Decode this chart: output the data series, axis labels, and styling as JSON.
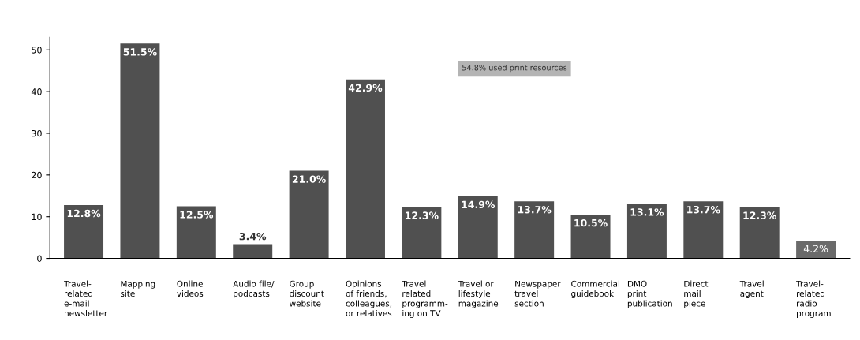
{
  "chart_data": {
    "type": "bar",
    "categories": [
      "Travel-\nrelated\ne-mail\nnewsletter",
      "Mapping\nsite",
      "Online\nvideos",
      "Audio file/\npodcasts",
      "Group\ndiscount\nwebsite",
      "Opinions\nof friends,\ncolleagues,\nor relatives",
      "Travel\nrelated\nprogramm-\ning on TV",
      "Travel or\nlifestyle\nmagazine",
      "Newspaper\ntravel\nsection",
      "Commercial\nguidebook",
      "DMO\nprint\npublication",
      "Direct\nmail\npiece",
      "Travel\nagent",
      "Travel-\nrelated\nradio\nprogram"
    ],
    "values": [
      12.8,
      51.5,
      12.5,
      3.4,
      21.0,
      42.9,
      12.3,
      14.9,
      13.7,
      10.5,
      13.1,
      13.7,
      12.3,
      4.2
    ],
    "colors": [
      "#505050",
      "#505050",
      "#505050",
      "#505050",
      "#505050",
      "#505050",
      "#505050",
      "#505050",
      "#505050",
      "#505050",
      "#505050",
      "#505050",
      "#505050",
      "#6a6a6a"
    ],
    "value_labels": [
      "12.8%",
      "51.5%",
      "12.5%",
      "3.4%",
      "21.0%",
      "42.9%",
      "12.3%",
      "14.9%",
      "13.7%",
      "10.5%",
      "13.1%",
      "13.7%",
      "12.3%",
      "4.2%"
    ],
    "annotations": [
      "54.8% used print resources"
    ],
    "ylim": [
      0,
      53
    ],
    "yticks": [
      0,
      10,
      20,
      30,
      40,
      50
    ],
    "grid": false,
    "legend": false
  }
}
